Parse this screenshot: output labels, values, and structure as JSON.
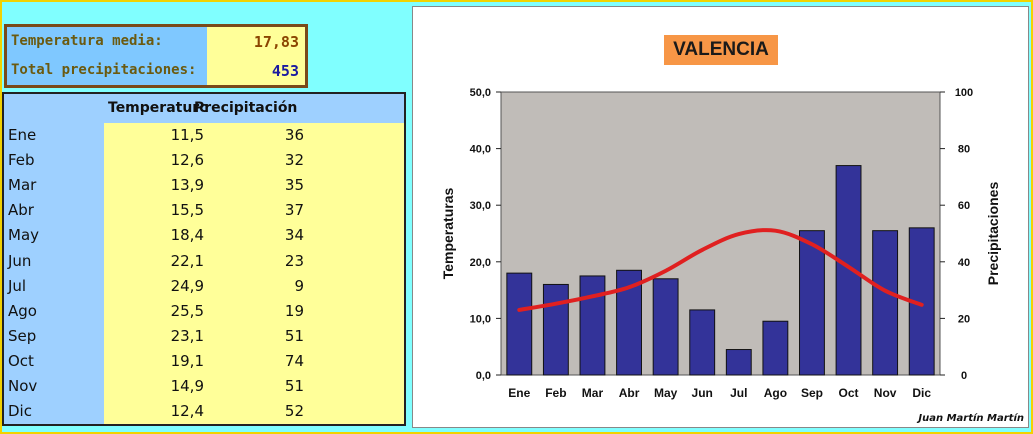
{
  "summary": {
    "temp_label": "Temperatura media:",
    "temp_value": "17,83",
    "precip_label": "Total precipitaciones:",
    "precip_value": "453",
    "temp_color": "#8b4500",
    "precip_color": "#1a1aa0"
  },
  "table": {
    "headers": [
      "Temperaturc",
      "Precipitación"
    ],
    "rows": [
      {
        "month": "Ene",
        "temp": "11,5",
        "prec": "36"
      },
      {
        "month": "Feb",
        "temp": "12,6",
        "prec": "32"
      },
      {
        "month": "Mar",
        "temp": "13,9",
        "prec": "35"
      },
      {
        "month": "Abr",
        "temp": "15,5",
        "prec": "37"
      },
      {
        "month": "May",
        "temp": "18,4",
        "prec": "34"
      },
      {
        "month": "Jun",
        "temp": "22,1",
        "prec": "23"
      },
      {
        "month": "Jul",
        "temp": "24,9",
        "prec": "9"
      },
      {
        "month": "Ago",
        "temp": "25,5",
        "prec": "19"
      },
      {
        "month": "Sep",
        "temp": "23,1",
        "prec": "51"
      },
      {
        "month": "Oct",
        "temp": "19,1",
        "prec": "74"
      },
      {
        "month": "Nov",
        "temp": "14,9",
        "prec": "51"
      },
      {
        "month": "Dic",
        "temp": "12,4",
        "prec": "52"
      }
    ]
  },
  "credit": "Juan Martín Martín",
  "chart_data": {
    "type": "bar",
    "title": "VALENCIA",
    "categories": [
      "Ene",
      "Feb",
      "Mar",
      "Abr",
      "May",
      "Jun",
      "Jul",
      "Ago",
      "Sep",
      "Oct",
      "Nov",
      "Dic"
    ],
    "series": [
      {
        "name": "Precipitaciones",
        "kind": "bar",
        "axis": "right",
        "color": "#333399",
        "values": [
          36,
          32,
          35,
          37,
          34,
          23,
          9,
          19,
          51,
          74,
          51,
          52
        ]
      },
      {
        "name": "Temperaturas",
        "kind": "line",
        "axis": "left",
        "color": "#e02020",
        "values": [
          11.5,
          12.6,
          13.9,
          15.5,
          18.4,
          22.1,
          24.9,
          25.5,
          23.1,
          19.1,
          14.9,
          12.4
        ]
      }
    ],
    "ylabel": "Temperaturas",
    "y2label": "Precipitaciones",
    "ylim": [
      0,
      50
    ],
    "y2lim": [
      0,
      100
    ],
    "yticks": [
      "0,0",
      "10,0",
      "20,0",
      "30,0",
      "40,0",
      "50,0"
    ],
    "y2ticks": [
      "0",
      "20",
      "40",
      "60",
      "80",
      "100"
    ],
    "plot_bg": "#c0bcb8"
  }
}
